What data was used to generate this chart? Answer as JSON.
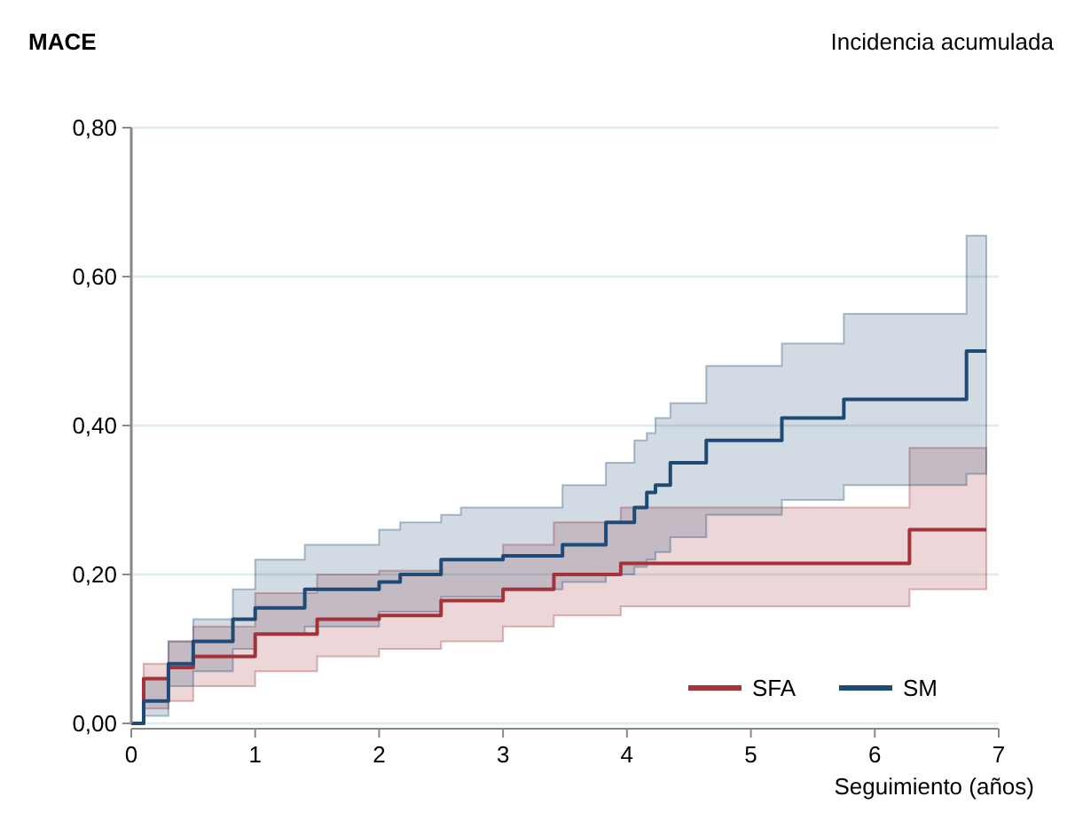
{
  "chart_data": {
    "type": "step",
    "title": "MACE",
    "subtitle": "Incidencia acumulada",
    "xlabel": "Seguimiento (años)",
    "xlim": [
      0,
      7
    ],
    "xticks": [
      0,
      1,
      2,
      3,
      4,
      5,
      6,
      7
    ],
    "ylim": [
      0,
      0.8
    ],
    "yticks": [
      {
        "value": 0,
        "label": "0,00"
      },
      {
        "value": 0.2,
        "label": "0,20"
      },
      {
        "value": 0.4,
        "label": "0,40"
      },
      {
        "value": 0.6,
        "label": "0,60"
      },
      {
        "value": 0.8,
        "label": "0,80"
      }
    ],
    "grid": "y",
    "legend": "bottom right",
    "line_style": "solid",
    "marker": "none",
    "series": [
      {
        "name": "SFA",
        "color": "#a3333a",
        "x": [
          0,
          0.1,
          0.3,
          0.5,
          1.0,
          1.5,
          2.0,
          2.5,
          3.0,
          3.41,
          3.95,
          6.28,
          6.9
        ],
        "values": [
          0,
          0.06,
          0.075,
          0.09,
          0.12,
          0.14,
          0.145,
          0.165,
          0.18,
          0.2,
          0.215,
          0.26,
          0.26
        ],
        "upper": [
          0,
          0.08,
          0.11,
          0.13,
          0.175,
          0.2,
          0.205,
          0.22,
          0.24,
          0.27,
          0.29,
          0.37,
          0.37
        ],
        "lower": [
          0,
          0.02,
          0.03,
          0.05,
          0.07,
          0.09,
          0.1,
          0.11,
          0.13,
          0.145,
          0.157,
          0.18,
          0.18
        ]
      },
      {
        "name": "SM",
        "color": "#1f4a75",
        "x": [
          0,
          0.1,
          0.3,
          0.5,
          0.82,
          1.0,
          1.4,
          2.0,
          2.17,
          2.5,
          2.66,
          3.0,
          3.48,
          3.83,
          4.06,
          4.16,
          4.23,
          4.35,
          4.64,
          5.25,
          5.75,
          6.74,
          6.9
        ],
        "values": [
          0,
          0.03,
          0.08,
          0.11,
          0.14,
          0.155,
          0.18,
          0.19,
          0.2,
          0.22,
          0.22,
          0.225,
          0.24,
          0.27,
          0.29,
          0.31,
          0.32,
          0.35,
          0.38,
          0.41,
          0.435,
          0.5,
          0.5
        ],
        "upper": [
          0,
          0.06,
          0.11,
          0.14,
          0.18,
          0.22,
          0.24,
          0.26,
          0.27,
          0.28,
          0.29,
          0.29,
          0.32,
          0.35,
          0.38,
          0.39,
          0.41,
          0.43,
          0.48,
          0.51,
          0.55,
          0.655,
          0.655
        ],
        "lower": [
          0,
          0.01,
          0.05,
          0.07,
          0.1,
          0.12,
          0.13,
          0.15,
          0.15,
          0.17,
          0.17,
          0.18,
          0.19,
          0.2,
          0.21,
          0.22,
          0.23,
          0.25,
          0.28,
          0.3,
          0.32,
          0.335,
          0.335
        ]
      }
    ]
  }
}
